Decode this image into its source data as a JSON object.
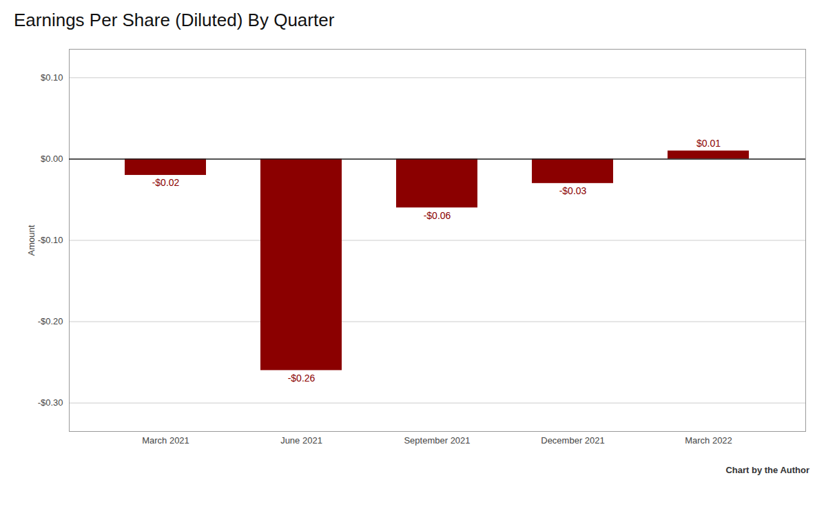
{
  "chart_data": {
    "type": "bar",
    "title": "Earnings Per Share (Diluted) By Quarter",
    "categories": [
      "March 2021",
      "June 2021",
      "September 2021",
      "December 2021",
      "March 2022"
    ],
    "values": [
      -0.02,
      -0.26,
      -0.06,
      -0.03,
      0.01
    ],
    "value_labels": [
      "-$0.02",
      "-$0.26",
      "-$0.06",
      "-$0.03",
      "$0.01"
    ],
    "data_labels": true,
    "color": "#8B0000",
    "ylabel": "Amount",
    "ylim": [
      -0.335,
      0.135
    ],
    "yticks": [
      {
        "value": 0.1,
        "label": "$0.10"
      },
      {
        "value": 0.0,
        "label": "$0.00"
      },
      {
        "value": -0.1,
        "label": "-$0.10"
      },
      {
        "value": -0.2,
        "label": "-$0.20"
      },
      {
        "value": -0.3,
        "label": "-$0.30"
      }
    ],
    "grid": true,
    "annotation": "Chart by the Author"
  }
}
